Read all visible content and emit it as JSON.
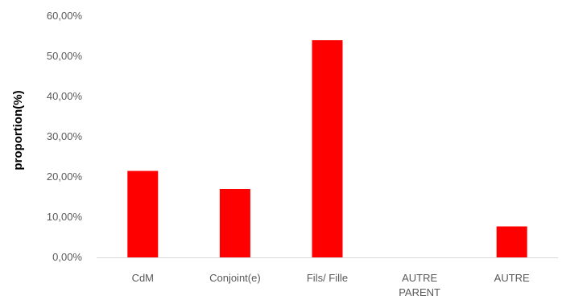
{
  "chart_data": {
    "type": "bar",
    "title": "",
    "xlabel": "",
    "ylabel": "proportion(%)",
    "categories": [
      [
        "CdM"
      ],
      [
        "Conjoint(e)"
      ],
      [
        "Fils/ Fille"
      ],
      [
        "AUTRE",
        "PARENT"
      ],
      [
        "AUTRE"
      ]
    ],
    "values": [
      21.5,
      17.0,
      54.0,
      0.0,
      7.7
    ],
    "ylim": [
      0,
      60
    ],
    "y_ticks": [
      "0,00%",
      "10,00%",
      "20,00%",
      "30,00%",
      "40,00%",
      "50,00%",
      "60,00%"
    ],
    "y_tick_values": [
      0,
      10,
      20,
      30,
      40,
      50,
      60
    ],
    "bar_color": "#ff0000",
    "axis_color": "#d9d9d9",
    "grid": false,
    "legend": "none"
  }
}
